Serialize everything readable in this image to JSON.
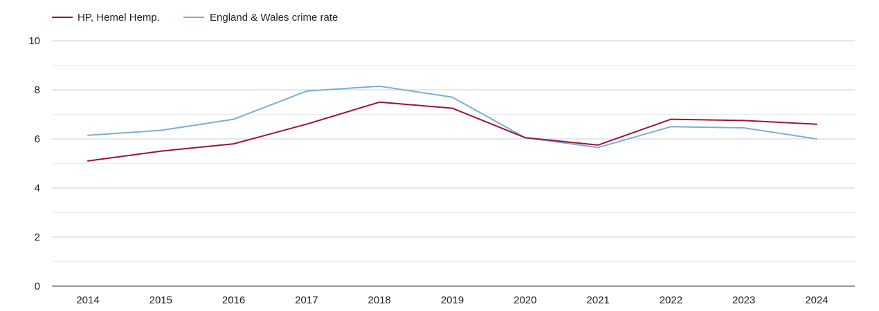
{
  "chart_data": {
    "type": "line",
    "title": "",
    "xlabel": "",
    "ylabel": "",
    "categories": [
      "2014",
      "2015",
      "2016",
      "2017",
      "2018",
      "2019",
      "2020",
      "2021",
      "2022",
      "2023",
      "2024"
    ],
    "ylim": [
      0,
      10
    ],
    "yticks": [
      "0",
      "2",
      "4",
      "6",
      "8",
      "10"
    ],
    "grid": true,
    "legend_position": "top-left",
    "series": [
      {
        "name": "HP, Hemel Hemp.",
        "color": "#a0103a",
        "values": [
          5.1,
          5.5,
          5.8,
          6.6,
          7.5,
          7.25,
          6.05,
          5.75,
          6.8,
          6.75,
          6.6
        ]
      },
      {
        "name": "England & Wales crime rate",
        "color": "#7bafd4",
        "values": [
          6.15,
          6.35,
          6.8,
          7.95,
          8.15,
          7.7,
          6.05,
          5.65,
          6.5,
          6.45,
          6.0
        ]
      }
    ]
  }
}
